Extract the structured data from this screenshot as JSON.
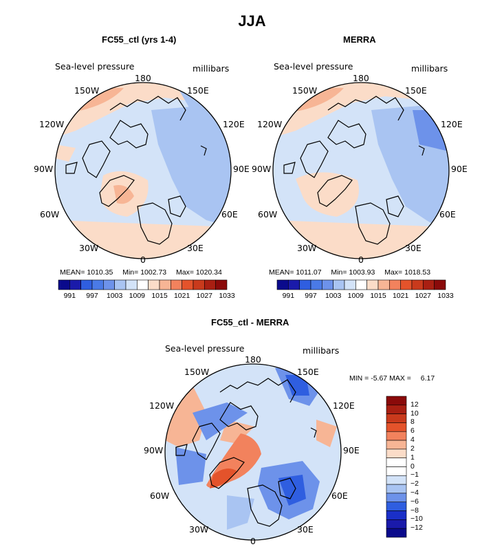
{
  "figure": {
    "season": "JJA",
    "variable_label": "Sea-level pressure",
    "units_label": "millibars"
  },
  "colors": {
    "deep_blue": "#0a0a8c",
    "blue": "#2f5ee0",
    "mid_blue": "#6d92ea",
    "light_blue": "#a9c4f2",
    "pale_blue": "#d3e3f8",
    "white": "#ffffff",
    "pale_red": "#fbdcc8",
    "light_red": "#f7b595",
    "mid_red": "#f2825d",
    "red": "#e4532b",
    "deep_red": "#8a0a0a"
  },
  "chart_data": [
    {
      "type": "heatmap",
      "projection": "north-polar-stereographic",
      "title": "FC55_ctl (yrs 1-4)",
      "variable": "Sea-level pressure",
      "units": "millibars",
      "stats": {
        "mean_label": "MEAN=",
        "mean": "1010.35",
        "min_label": "Min=",
        "min": "1002.73",
        "max_label": "Max=",
        "max": "1020.34"
      },
      "lon_labels": {
        "top": "180",
        "top_left": "150W",
        "top_right": "150E",
        "upper_left": "120W",
        "upper_right": "120E",
        "left": "90W",
        "right": "90E",
        "lower_left": "60W",
        "lower_right": "60E",
        "bottom_left": "30W",
        "bottom_right": "30E",
        "bottom": "0"
      },
      "colorbar_ticks": [
        "991",
        "997",
        "1003",
        "1009",
        "1015",
        "1021",
        "1027",
        "1033"
      ],
      "colorbar_levels": 15
    },
    {
      "type": "heatmap",
      "projection": "north-polar-stereographic",
      "title": "MERRA",
      "variable": "Sea-level pressure",
      "units": "millibars",
      "stats": {
        "mean_label": "MEAN=",
        "mean": "1011.07",
        "min_label": "Min=",
        "min": "1003.93",
        "max_label": "Max=",
        "max": "1018.53"
      },
      "lon_labels": {
        "top": "180",
        "top_left": "150W",
        "top_right": "150E",
        "upper_left": "120W",
        "upper_right": "120E",
        "left": "90W",
        "right": "90E",
        "lower_left": "60W",
        "lower_right": "60E",
        "bottom_left": "30W",
        "bottom_right": "30E",
        "bottom": "0"
      },
      "colorbar_ticks": [
        "991",
        "997",
        "1003",
        "1009",
        "1015",
        "1021",
        "1027",
        "1033"
      ],
      "colorbar_levels": 15
    },
    {
      "type": "heatmap",
      "projection": "north-polar-stereographic",
      "title": "FC55_ctl - MERRA",
      "variable": "Sea-level pressure",
      "units": "millibars",
      "stats": {
        "min_label": "MIN =",
        "min": "-5.67",
        "max_label": "MAX =",
        "max": "6.17"
      },
      "lon_labels": {
        "top": "180",
        "top_left": "150W",
        "top_right": "150E",
        "upper_left": "120W",
        "upper_right": "120E",
        "left": "90W",
        "right": "90E",
        "lower_left": "60W",
        "lower_right": "60E",
        "bottom_left": "30W",
        "bottom_right": "30E",
        "bottom": "0"
      },
      "colorbar_ticks": [
        "12",
        "10",
        "8",
        "6",
        "4",
        "2",
        "1",
        "0",
        "−1",
        "−2",
        "−4",
        "−6",
        "−8",
        "−10",
        "−12"
      ],
      "colorbar_orientation": "vertical"
    }
  ]
}
